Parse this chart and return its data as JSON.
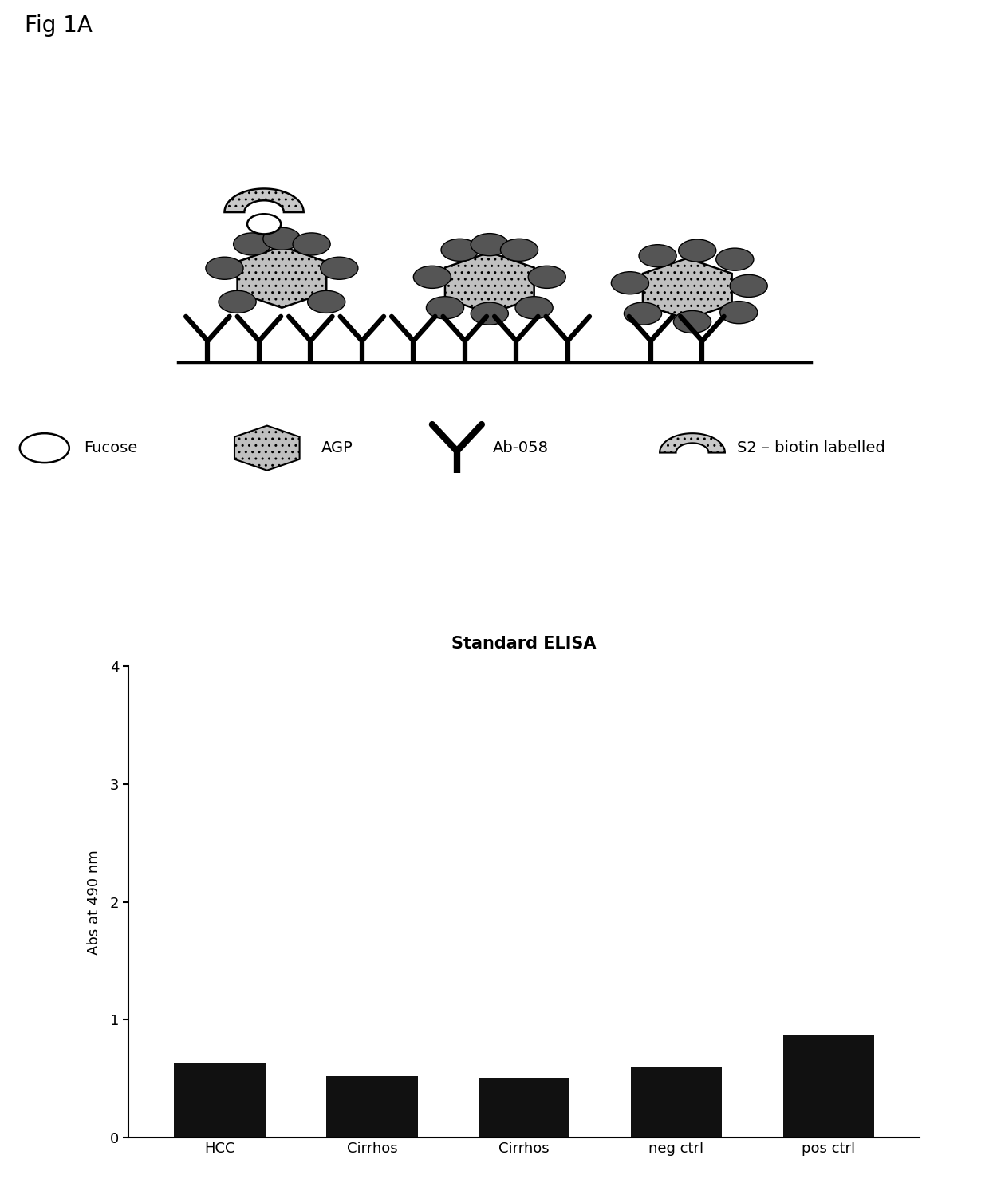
{
  "fig_label": "Fig 1A",
  "bar_title": "Standard ELISA",
  "bar_categories": [
    "HCC",
    "Cirrhos",
    "Cirrhos",
    "neg ctrl",
    "pos ctrl"
  ],
  "bar_values": [
    0.63,
    0.52,
    0.51,
    0.6,
    0.87
  ],
  "bar_color": "#111111",
  "ylabel": "Abs at 490 nm",
  "ylim": [
    0,
    4
  ],
  "yticks": [
    0,
    1,
    2,
    3,
    4
  ],
  "bg_color": "#ffffff",
  "bar_title_fontsize": 15,
  "hatch_pattern": "..",
  "hex_facecolor": "#c0c0c0",
  "dark_circle_color": "#555555",
  "arc_facecolor": "#c8c8c8"
}
